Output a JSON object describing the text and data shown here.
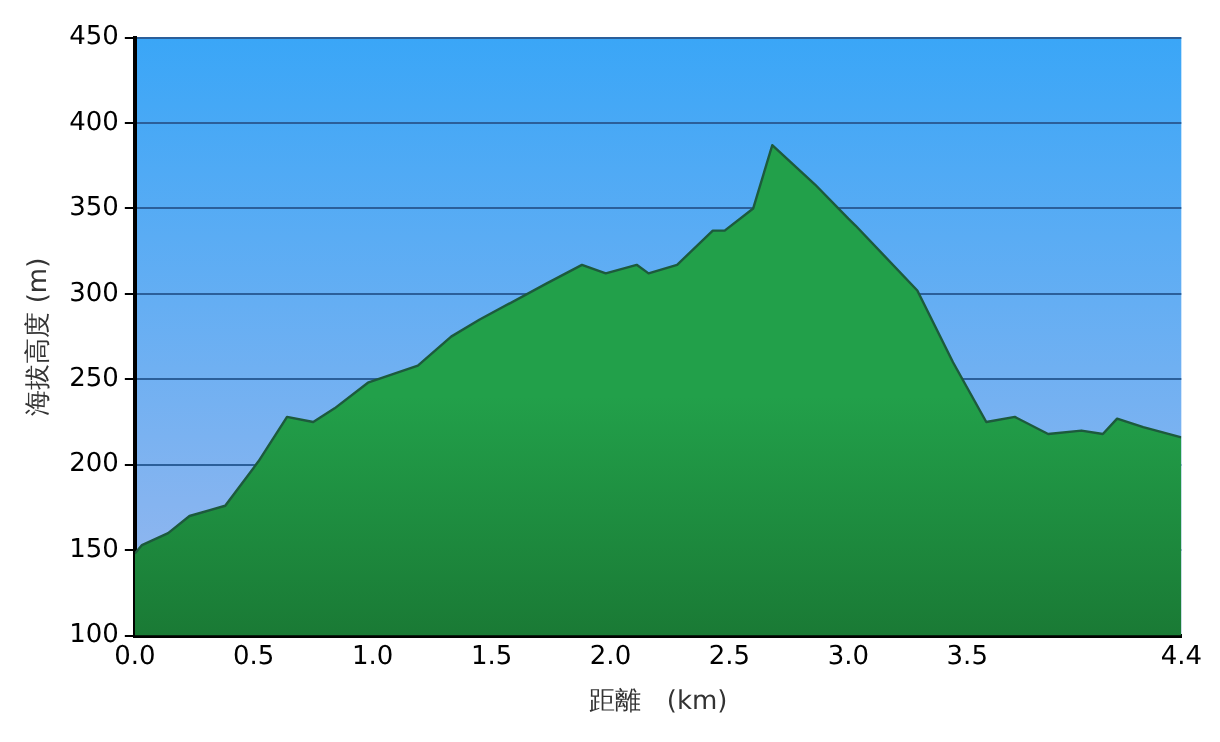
{
  "chart_data": {
    "type": "area",
    "xlabel": "距離　(km)",
    "ylabel": "海拔高度 (m)",
    "x": [
      0,
      0.03,
      0.14,
      0.23,
      0.38,
      0.52,
      0.64,
      0.75,
      0.84,
      0.98,
      1.19,
      1.33,
      1.45,
      1.73,
      1.88,
      1.98,
      2.11,
      2.16,
      2.28,
      2.43,
      2.48,
      2.6,
      2.68,
      2.86,
      3.0,
      3.03,
      3.29,
      3.44,
      3.58,
      3.7,
      3.84,
      3.98,
      4.07,
      4.13,
      4.24,
      4.4
    ],
    "series": [
      {
        "color": "#22a04a",
        "values": [
          148,
          153,
          160,
          170,
          176,
          202,
          228,
          225,
          233,
          248,
          258,
          275,
          285,
          306,
          317,
          312,
          317,
          312,
          317,
          337,
          337,
          350,
          387,
          364,
          344,
          340,
          302,
          260,
          225,
          228,
          218,
          220,
          218,
          227,
          222,
          216
        ]
      }
    ],
    "xlim": [
      0,
      4.4
    ],
    "xticks": [
      {
        "value": 0,
        "label": "0.0"
      },
      0.5,
      {
        "value": 1,
        "label": "1.0"
      },
      1.5,
      {
        "value": 2,
        "label": "2.0"
      },
      2.5,
      {
        "value": 3,
        "label": "3.0"
      },
      3.5,
      4.4
    ],
    "ylim": [
      100,
      450
    ],
    "yticks": [
      100,
      150,
      200,
      250,
      300,
      350,
      400,
      450
    ],
    "grid": "y",
    "legend": false,
    "marker": "none",
    "line_style": "solid"
  }
}
